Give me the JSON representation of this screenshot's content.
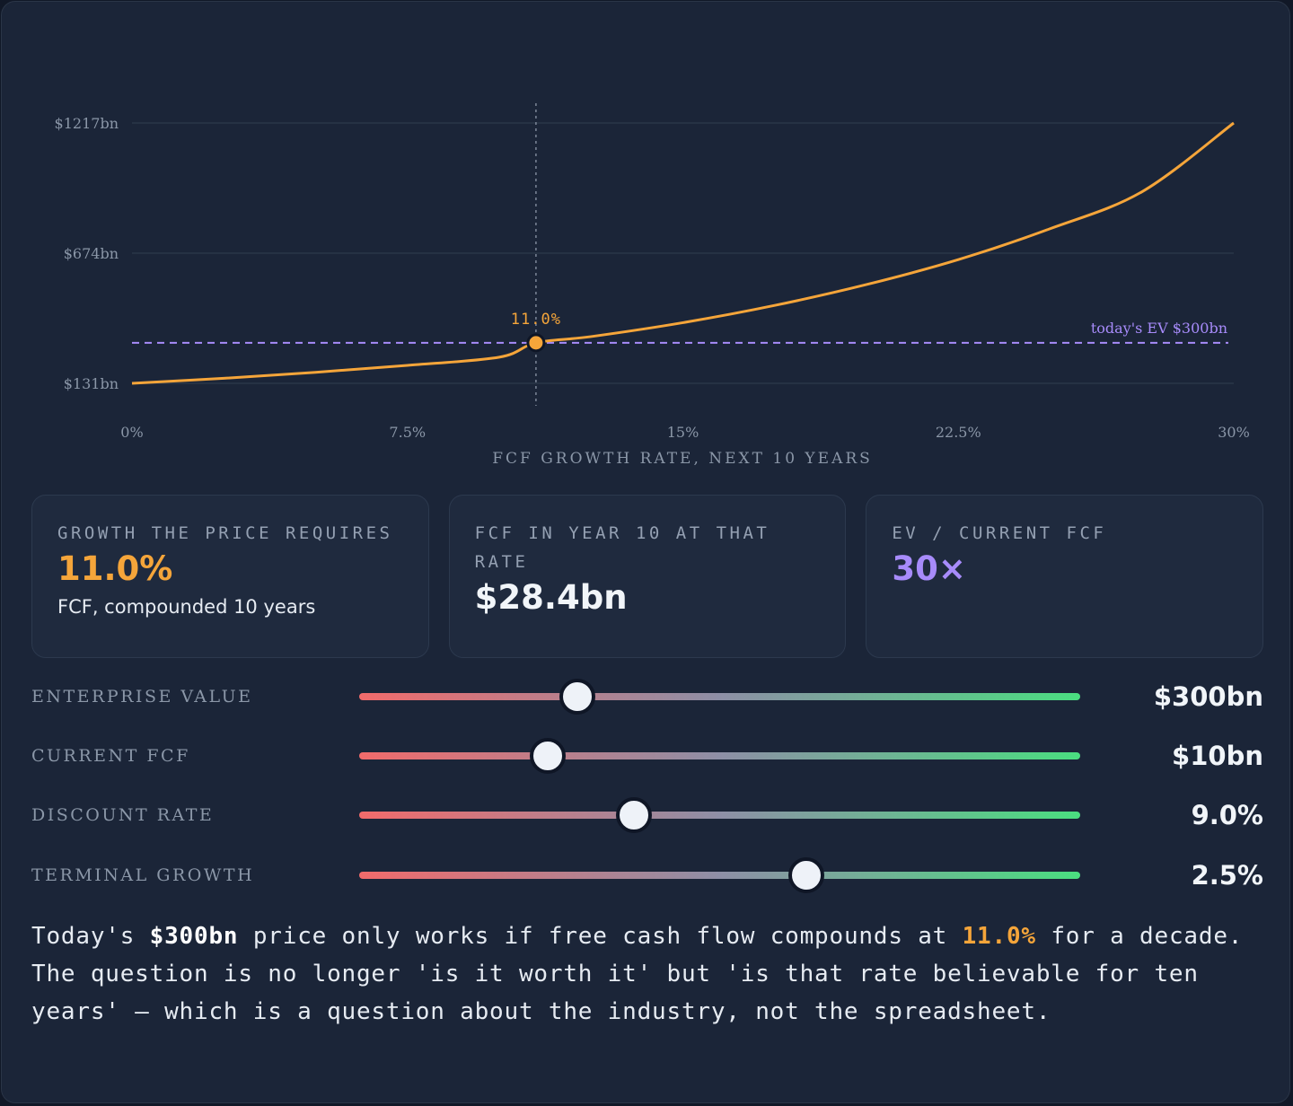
{
  "chart_data": {
    "type": "line",
    "xlabel": "FCF GROWTH RATE, NEXT 10 YEARS",
    "xlim": [
      0,
      30
    ],
    "ylim": [
      131,
      1217
    ],
    "x_ticks": [
      "0%",
      "7.5%",
      "15%",
      "22.5%",
      "30%"
    ],
    "x_tick_values": [
      0,
      7.5,
      15,
      22.5,
      30
    ],
    "y_ticks": [
      "$131bn",
      "$674bn",
      "$1217bn"
    ],
    "y_tick_values": [
      131,
      674,
      1217
    ],
    "series": [
      {
        "color": "#f5a53a",
        "x": [
          0,
          2.5,
          5,
          7.5,
          10,
          11,
          12.5,
          15,
          17.5,
          20,
          22.5,
          25,
          27.5,
          30
        ],
        "y": [
          131,
          152,
          177,
          206,
          240,
          300,
          326,
          384,
          456,
          543,
          647,
          776,
          930,
          1217
        ]
      }
    ],
    "reference_line": {
      "label": "today's EV $300bn",
      "value": 300,
      "color": "#a78bfa"
    },
    "highlight": {
      "x": 11.0,
      "y": 300,
      "label": "11.0%"
    },
    "grid": true
  },
  "cards": [
    {
      "label": "GROWTH THE PRICE REQUIRES",
      "value": "11.0%",
      "sub": "FCF, compounded 10 years"
    },
    {
      "label": "FCF IN YEAR 10 AT THAT RATE",
      "value": "$28.4bn"
    },
    {
      "label": "EV / CURRENT FCF",
      "value": "30×"
    }
  ],
  "sliders": [
    {
      "label": "ENTERPRISE VALUE",
      "value": "$300bn",
      "position": 0.303
    },
    {
      "label": "CURRENT FCF",
      "value": "$10bn",
      "position": 0.262
    },
    {
      "label": "DISCOUNT RATE",
      "value": "9.0%",
      "position": 0.381
    },
    {
      "label": "TERMINAL GROWTH",
      "value": "2.5%",
      "position": 0.62
    }
  ],
  "summary": {
    "p1": "Today's ",
    "ev": "$300bn",
    "p2": " price only works if free cash flow compounds at ",
    "rate": "11.0%",
    "p3": " for a decade. The question is no longer 'is it worth it' but 'is that rate believable for ten years' — which is a question about the industry, not the spreadsheet."
  },
  "colors": {
    "accent": "#f5a53a",
    "reference": "#a78bfa",
    "slider_low": "#f26b6b",
    "slider_high": "#4ade80"
  }
}
